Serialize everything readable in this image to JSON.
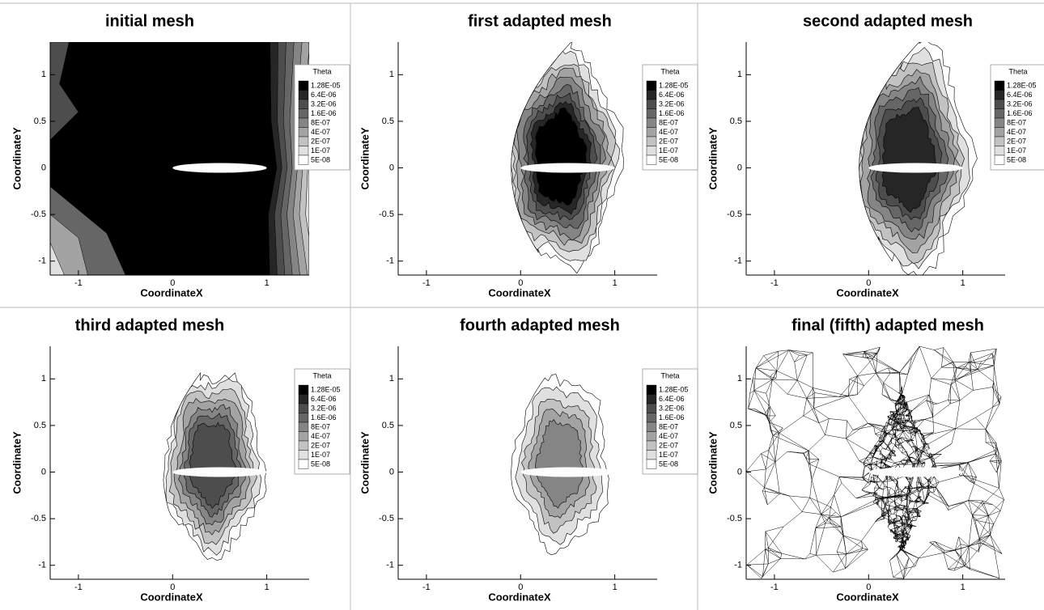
{
  "chart_data": [
    {
      "type": "contour",
      "title": "initial mesh",
      "xlabel": "CoordinateX",
      "ylabel": "CoordinateY",
      "xlim": [
        -1.3,
        1.45
      ],
      "ylim": [
        -1.15,
        1.35
      ],
      "xticks": [
        -1,
        0,
        1
      ],
      "yticks": [
        -1,
        -0.5,
        0,
        0.5,
        1
      ],
      "legend_title": "Theta",
      "levels": [
        {
          "value": 1.28e-05,
          "label": "1.28E-05"
        },
        {
          "value": 6.4e-06,
          "label": "6.4E-06"
        },
        {
          "value": 3.2e-06,
          "label": "3.2E-06"
        },
        {
          "value": 1.6e-06,
          "label": "1.6E-06"
        },
        {
          "value": 8e-07,
          "label": "8E-07"
        },
        {
          "value": 4e-07,
          "label": "4E-07"
        },
        {
          "value": 2e-07,
          "label": "2E-07"
        },
        {
          "value": 1e-07,
          "label": "1E-07"
        },
        {
          "value": 5e-08,
          "label": "5E-08"
        }
      ],
      "colors": [
        "#000000",
        "#262626",
        "#4d4d4d",
        "#666666",
        "#858585",
        "#a3a3a3",
        "#c2c2c2",
        "#e0e0e0",
        "#ffffff"
      ]
    },
    {
      "type": "contour",
      "title": "first adapted mesh",
      "xlabel": "CoordinateX",
      "ylabel": "CoordinateY",
      "xlim": [
        -1.3,
        1.45
      ],
      "ylim": [
        -1.15,
        1.35
      ],
      "xticks": [
        -1,
        0,
        1
      ],
      "yticks": [
        -1,
        -0.5,
        0,
        0.5,
        1
      ],
      "legend_title": "Theta",
      "levels": [
        {
          "value": 1.28e-05,
          "label": "1.28E-05"
        },
        {
          "value": 6.4e-06,
          "label": "6.4E-06"
        },
        {
          "value": 3.2e-06,
          "label": "3.2E-06"
        },
        {
          "value": 1.6e-06,
          "label": "1.6E-06"
        },
        {
          "value": 8e-07,
          "label": "8E-07"
        },
        {
          "value": 4e-07,
          "label": "4E-07"
        },
        {
          "value": 2e-07,
          "label": "2E-07"
        },
        {
          "value": 1e-07,
          "label": "1E-07"
        },
        {
          "value": 5e-08,
          "label": "5E-08"
        }
      ],
      "colors": [
        "#000000",
        "#262626",
        "#4d4d4d",
        "#666666",
        "#858585",
        "#a3a3a3",
        "#c2c2c2",
        "#e0e0e0",
        "#ffffff"
      ]
    },
    {
      "type": "contour",
      "title": "second adapted mesh",
      "xlabel": "CoordinateX",
      "ylabel": "CoordinateY",
      "xlim": [
        -1.3,
        1.45
      ],
      "ylim": [
        -1.15,
        1.35
      ],
      "xticks": [
        -1,
        0,
        1
      ],
      "yticks": [
        -1,
        -0.5,
        0,
        0.5,
        1
      ],
      "legend_title": "Theta",
      "levels": [
        {
          "value": 1.28e-05,
          "label": "1.28E-05"
        },
        {
          "value": 6.4e-06,
          "label": "6.4E-06"
        },
        {
          "value": 3.2e-06,
          "label": "3.2E-06"
        },
        {
          "value": 1.6e-06,
          "label": "1.6E-06"
        },
        {
          "value": 8e-07,
          "label": "8E-07"
        },
        {
          "value": 4e-07,
          "label": "4E-07"
        },
        {
          "value": 2e-07,
          "label": "2E-07"
        },
        {
          "value": 1e-07,
          "label": "1E-07"
        },
        {
          "value": 5e-08,
          "label": "5E-08"
        }
      ],
      "colors": [
        "#000000",
        "#262626",
        "#4d4d4d",
        "#666666",
        "#858585",
        "#a3a3a3",
        "#c2c2c2",
        "#e0e0e0",
        "#ffffff"
      ]
    },
    {
      "type": "contour",
      "title": "third adapted mesh",
      "xlabel": "CoordinateX",
      "ylabel": "CoordinateY",
      "xlim": [
        -1.3,
        1.45
      ],
      "ylim": [
        -1.15,
        1.35
      ],
      "xticks": [
        -1,
        0,
        1
      ],
      "yticks": [
        -1,
        -0.5,
        0,
        0.5,
        1
      ],
      "legend_title": "Theta",
      "levels": [
        {
          "value": 1.28e-05,
          "label": "1.28E-05"
        },
        {
          "value": 6.4e-06,
          "label": "6.4E-06"
        },
        {
          "value": 3.2e-06,
          "label": "3.2E-06"
        },
        {
          "value": 1.6e-06,
          "label": "1.6E-06"
        },
        {
          "value": 8e-07,
          "label": "8E-07"
        },
        {
          "value": 4e-07,
          "label": "4E-07"
        },
        {
          "value": 2e-07,
          "label": "2E-07"
        },
        {
          "value": 1e-07,
          "label": "1E-07"
        },
        {
          "value": 5e-08,
          "label": "5E-08"
        }
      ],
      "colors": [
        "#000000",
        "#262626",
        "#4d4d4d",
        "#666666",
        "#858585",
        "#a3a3a3",
        "#c2c2c2",
        "#e0e0e0",
        "#ffffff"
      ]
    },
    {
      "type": "contour",
      "title": "fourth adapted mesh",
      "xlabel": "CoordinateX",
      "ylabel": "CoordinateY",
      "xlim": [
        -1.3,
        1.45
      ],
      "ylim": [
        -1.15,
        1.35
      ],
      "xticks": [
        -1,
        0,
        1
      ],
      "yticks": [
        -1,
        -0.5,
        0,
        0.5,
        1
      ],
      "legend_title": "Theta",
      "levels": [
        {
          "value": 1.28e-05,
          "label": "1.28E-05"
        },
        {
          "value": 6.4e-06,
          "label": "6.4E-06"
        },
        {
          "value": 3.2e-06,
          "label": "3.2E-06"
        },
        {
          "value": 1.6e-06,
          "label": "1.6E-06"
        },
        {
          "value": 8e-07,
          "label": "8E-07"
        },
        {
          "value": 4e-07,
          "label": "4E-07"
        },
        {
          "value": 2e-07,
          "label": "2E-07"
        },
        {
          "value": 1e-07,
          "label": "1E-07"
        },
        {
          "value": 5e-08,
          "label": "5E-08"
        }
      ],
      "colors": [
        "#000000",
        "#262626",
        "#4d4d4d",
        "#666666",
        "#858585",
        "#a3a3a3",
        "#c2c2c2",
        "#e0e0e0",
        "#ffffff"
      ]
    },
    {
      "type": "mesh",
      "title": "final (fifth) adapted mesh",
      "xlabel": "CoordinateX",
      "ylabel": "CoordinateY",
      "xlim": [
        -1.3,
        1.45
      ],
      "ylim": [
        -1.15,
        1.35
      ],
      "xticks": [
        -1,
        0,
        1
      ],
      "yticks": [
        -1,
        -0.5,
        0,
        0.5,
        1
      ]
    }
  ]
}
